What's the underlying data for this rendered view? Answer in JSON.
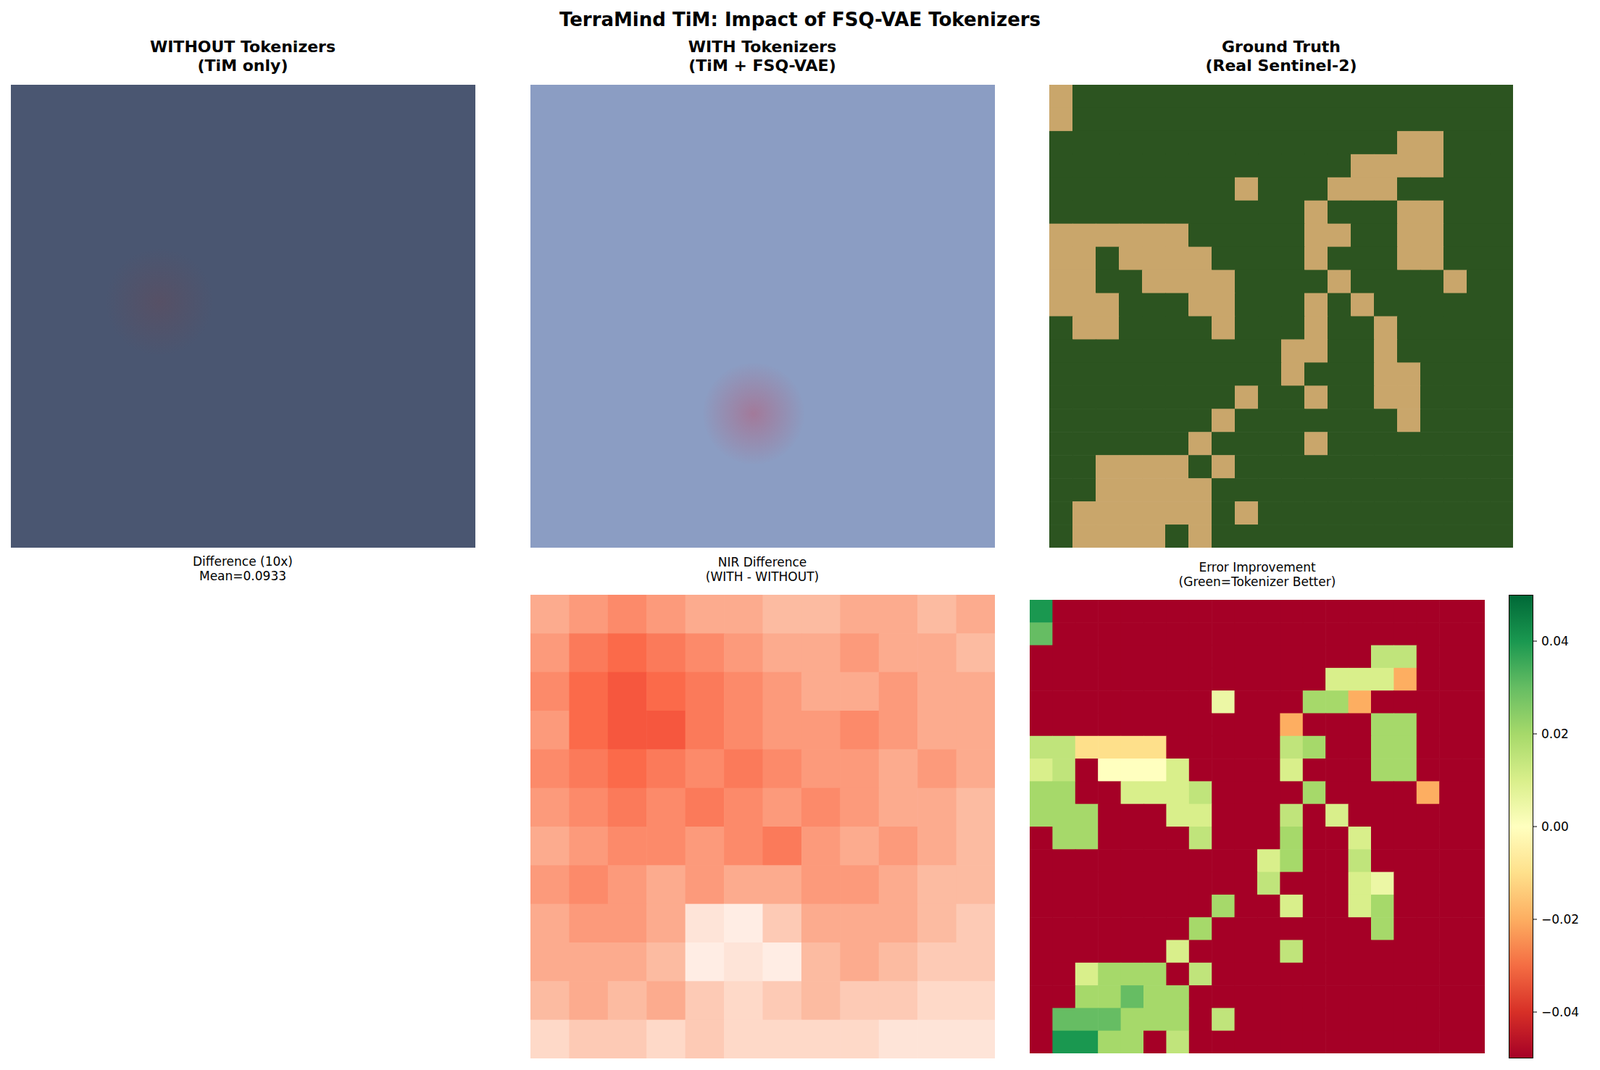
{
  "title": "TerraMind TiM: Impact of FSQ-VAE Tokenizers",
  "chart_data": [
    {
      "type": "image",
      "title": "WITHOUT Tokenizers\n(TiM only)",
      "color": "#4a5671",
      "tick_labels": false
    },
    {
      "type": "image",
      "title": "WITH Tokenizers\n(TiM + FSQ-VAE)",
      "color": "#8b9dc3",
      "tick_labels": false
    },
    {
      "type": "image",
      "title": "Ground Truth\n(Real Sentinel-2)",
      "colors": [
        "#2c5420",
        "#c9a66b"
      ],
      "tick_labels": false
    },
    {
      "type": "text",
      "title": "Difference (10x)\nMean=0.0933"
    },
    {
      "type": "heatmap",
      "title": "NIR Difference\n(WITH - WITHOUT)",
      "tick_labels": false,
      "clim": [
        0,
        1
      ],
      "colors": [
        "#fff5f0",
        "#fee0d2",
        "#fcbba1",
        "#fc9272",
        "#fb6a4a",
        "#ef3b2c",
        "#cb181d",
        "#a50f15",
        "#67000d"
      ],
      "cells": [
        [
          0.3,
          0.35,
          0.4,
          0.35,
          0.3,
          0.3,
          0.25,
          0.25,
          0.3,
          0.3,
          0.25,
          0.3
        ],
        [
          0.35,
          0.45,
          0.5,
          0.45,
          0.4,
          0.35,
          0.3,
          0.3,
          0.35,
          0.3,
          0.3,
          0.25
        ],
        [
          0.4,
          0.5,
          0.55,
          0.5,
          0.45,
          0.4,
          0.35,
          0.3,
          0.3,
          0.35,
          0.3,
          0.3
        ],
        [
          0.35,
          0.5,
          0.55,
          0.55,
          0.45,
          0.4,
          0.35,
          0.35,
          0.4,
          0.35,
          0.3,
          0.3
        ],
        [
          0.4,
          0.45,
          0.5,
          0.45,
          0.4,
          0.45,
          0.4,
          0.35,
          0.35,
          0.3,
          0.35,
          0.3
        ],
        [
          0.35,
          0.4,
          0.45,
          0.4,
          0.45,
          0.4,
          0.35,
          0.4,
          0.35,
          0.3,
          0.3,
          0.25
        ],
        [
          0.3,
          0.35,
          0.4,
          0.4,
          0.35,
          0.4,
          0.45,
          0.35,
          0.3,
          0.35,
          0.3,
          0.25
        ],
        [
          0.35,
          0.4,
          0.35,
          0.3,
          0.35,
          0.3,
          0.3,
          0.35,
          0.35,
          0.3,
          0.25,
          0.25
        ],
        [
          0.3,
          0.35,
          0.35,
          0.3,
          0.1,
          0.05,
          0.2,
          0.3,
          0.3,
          0.3,
          0.25,
          0.2
        ],
        [
          0.3,
          0.3,
          0.3,
          0.25,
          0.05,
          0.1,
          0.05,
          0.25,
          0.3,
          0.25,
          0.2,
          0.2
        ],
        [
          0.25,
          0.3,
          0.25,
          0.3,
          0.2,
          0.15,
          0.2,
          0.25,
          0.2,
          0.2,
          0.15,
          0.15
        ],
        [
          0.15,
          0.2,
          0.2,
          0.15,
          0.2,
          0.15,
          0.15,
          0.15,
          0.15,
          0.1,
          0.1,
          0.1
        ]
      ]
    },
    {
      "type": "heatmap",
      "title": "Error Improvement\n(Green=Tokenizer Better)",
      "tick_labels": false,
      "clim": [
        -0.05,
        0.05
      ],
      "cticks": [
        {
          "value": -0.04,
          "label": "−0.04"
        },
        {
          "value": -0.02,
          "label": "−0.02"
        },
        {
          "value": 0,
          "label": "0.00"
        },
        0.02,
        0.04
      ],
      "colors": [
        "#a50026",
        "#d73027",
        "#f46d43",
        "#fdae61",
        "#fee08b",
        "#ffffbf",
        "#d9ef8b",
        "#a6d96a",
        "#66bd63",
        "#1a9850",
        "#006837"
      ],
      "cells": [
        [
          0.04,
          -0.05,
          -0.05,
          -0.05,
          -0.05,
          -0.05,
          -0.05,
          -0.05,
          -0.05,
          -0.05,
          -0.05,
          -0.05,
          -0.05,
          -0.05,
          -0.05,
          -0.05,
          -0.05,
          -0.05,
          -0.05,
          -0.05
        ],
        [
          0.03,
          -0.05,
          -0.05,
          -0.05,
          -0.05,
          -0.05,
          -0.05,
          -0.05,
          -0.05,
          -0.05,
          -0.05,
          -0.05,
          -0.05,
          -0.05,
          -0.05,
          -0.05,
          -0.05,
          -0.05,
          -0.05,
          -0.05
        ],
        [
          -0.05,
          -0.05,
          -0.05,
          -0.05,
          -0.05,
          -0.05,
          -0.05,
          -0.05,
          -0.05,
          -0.05,
          -0.05,
          -0.05,
          -0.05,
          -0.05,
          -0.05,
          0.015,
          0.015,
          -0.05,
          -0.05,
          -0.05
        ],
        [
          -0.05,
          -0.05,
          -0.05,
          -0.05,
          -0.05,
          -0.05,
          -0.05,
          -0.05,
          -0.05,
          -0.05,
          -0.05,
          -0.05,
          -0.05,
          0.01,
          0.01,
          0.01,
          -0.02,
          -0.05,
          -0.05,
          -0.05
        ],
        [
          -0.05,
          -0.05,
          -0.05,
          -0.05,
          -0.05,
          -0.05,
          -0.05,
          -0.05,
          0.005,
          -0.05,
          -0.05,
          -0.05,
          0.02,
          0.02,
          -0.02,
          -0.05,
          -0.05,
          -0.05,
          -0.05,
          -0.05
        ],
        [
          -0.05,
          -0.05,
          -0.05,
          -0.05,
          -0.05,
          -0.05,
          -0.05,
          -0.05,
          -0.05,
          -0.05,
          -0.05,
          -0.02,
          -0.05,
          -0.05,
          -0.05,
          0.02,
          0.02,
          -0.05,
          -0.05,
          -0.05
        ],
        [
          0.015,
          0.015,
          -0.01,
          -0.01,
          -0.01,
          -0.01,
          -0.05,
          -0.05,
          -0.05,
          -0.05,
          -0.05,
          0.015,
          0.02,
          -0.05,
          -0.05,
          0.02,
          0.02,
          -0.05,
          -0.05,
          -0.05
        ],
        [
          0.01,
          0.015,
          -0.05,
          0,
          0,
          0,
          0.01,
          -0.05,
          -0.05,
          -0.05,
          -0.05,
          0.01,
          -0.05,
          -0.05,
          -0.05,
          0.02,
          0.02,
          -0.05,
          -0.05,
          -0.05
        ],
        [
          0.02,
          0.02,
          -0.05,
          -0.05,
          0.01,
          0.01,
          0.01,
          0.015,
          -0.05,
          -0.05,
          -0.05,
          -0.05,
          0.02,
          -0.05,
          -0.05,
          -0.05,
          -0.05,
          -0.02,
          -0.05,
          -0.05
        ],
        [
          0.02,
          0.02,
          0.02,
          -0.05,
          -0.05,
          -0.05,
          0.01,
          0.01,
          -0.05,
          -0.05,
          -0.05,
          0.015,
          -0.05,
          0.01,
          -0.05,
          -0.05,
          -0.05,
          -0.05,
          -0.05,
          -0.05
        ],
        [
          -0.05,
          0.02,
          0.02,
          -0.05,
          -0.05,
          -0.05,
          -0.05,
          0.015,
          -0.05,
          -0.05,
          -0.05,
          0.02,
          -0.05,
          -0.05,
          0.01,
          -0.05,
          -0.05,
          -0.05,
          -0.05,
          -0.05
        ],
        [
          -0.05,
          -0.05,
          -0.05,
          -0.05,
          -0.05,
          -0.05,
          -0.05,
          -0.05,
          -0.05,
          -0.05,
          0.01,
          0.02,
          -0.05,
          -0.05,
          0.015,
          -0.05,
          -0.05,
          -0.05,
          -0.05,
          -0.05
        ],
        [
          -0.05,
          -0.05,
          -0.05,
          -0.05,
          -0.05,
          -0.05,
          -0.05,
          -0.05,
          -0.05,
          -0.05,
          0.015,
          -0.05,
          -0.05,
          -0.05,
          0.01,
          0.005,
          -0.05,
          -0.05,
          -0.05,
          -0.05
        ],
        [
          -0.05,
          -0.05,
          -0.05,
          -0.05,
          -0.05,
          -0.05,
          -0.05,
          -0.05,
          0.02,
          -0.05,
          -0.05,
          0.01,
          -0.05,
          -0.05,
          0.01,
          0.02,
          -0.05,
          -0.05,
          -0.05,
          -0.05
        ],
        [
          -0.05,
          -0.05,
          -0.05,
          -0.05,
          -0.05,
          -0.05,
          -0.05,
          0.02,
          -0.05,
          -0.05,
          -0.05,
          -0.05,
          -0.05,
          -0.05,
          -0.05,
          0.02,
          -0.05,
          -0.05,
          -0.05,
          -0.05
        ],
        [
          -0.05,
          -0.05,
          -0.05,
          -0.05,
          -0.05,
          -0.05,
          0.01,
          -0.05,
          -0.05,
          -0.05,
          -0.05,
          0.015,
          -0.05,
          -0.05,
          -0.05,
          -0.05,
          -0.05,
          -0.05,
          -0.05,
          -0.05
        ],
        [
          -0.05,
          -0.05,
          0.01,
          0.02,
          0.02,
          0.02,
          -0.05,
          0.015,
          -0.05,
          -0.05,
          -0.05,
          -0.05,
          -0.05,
          -0.05,
          -0.05,
          -0.05,
          -0.05,
          -0.05,
          -0.05,
          -0.05
        ],
        [
          -0.05,
          -0.05,
          0.02,
          0.02,
          0.03,
          0.02,
          0.02,
          -0.05,
          -0.05,
          -0.05,
          -0.05,
          -0.05,
          -0.05,
          -0.05,
          -0.05,
          -0.05,
          -0.05,
          -0.05,
          -0.05,
          -0.05
        ],
        [
          -0.05,
          0.03,
          0.03,
          0.03,
          0.02,
          0.02,
          0.02,
          -0.05,
          0.015,
          -0.05,
          -0.05,
          -0.05,
          -0.05,
          -0.05,
          -0.05,
          -0.05,
          -0.05,
          -0.05,
          -0.05,
          -0.05
        ],
        [
          -0.05,
          0.04,
          0.04,
          0.02,
          0.02,
          -0.05,
          0.015,
          -0.05,
          -0.05,
          -0.05,
          -0.05,
          -0.05,
          -0.05,
          -0.05,
          -0.05,
          -0.05,
          -0.05,
          -0.05,
          -0.05,
          -0.05
        ]
      ]
    }
  ]
}
